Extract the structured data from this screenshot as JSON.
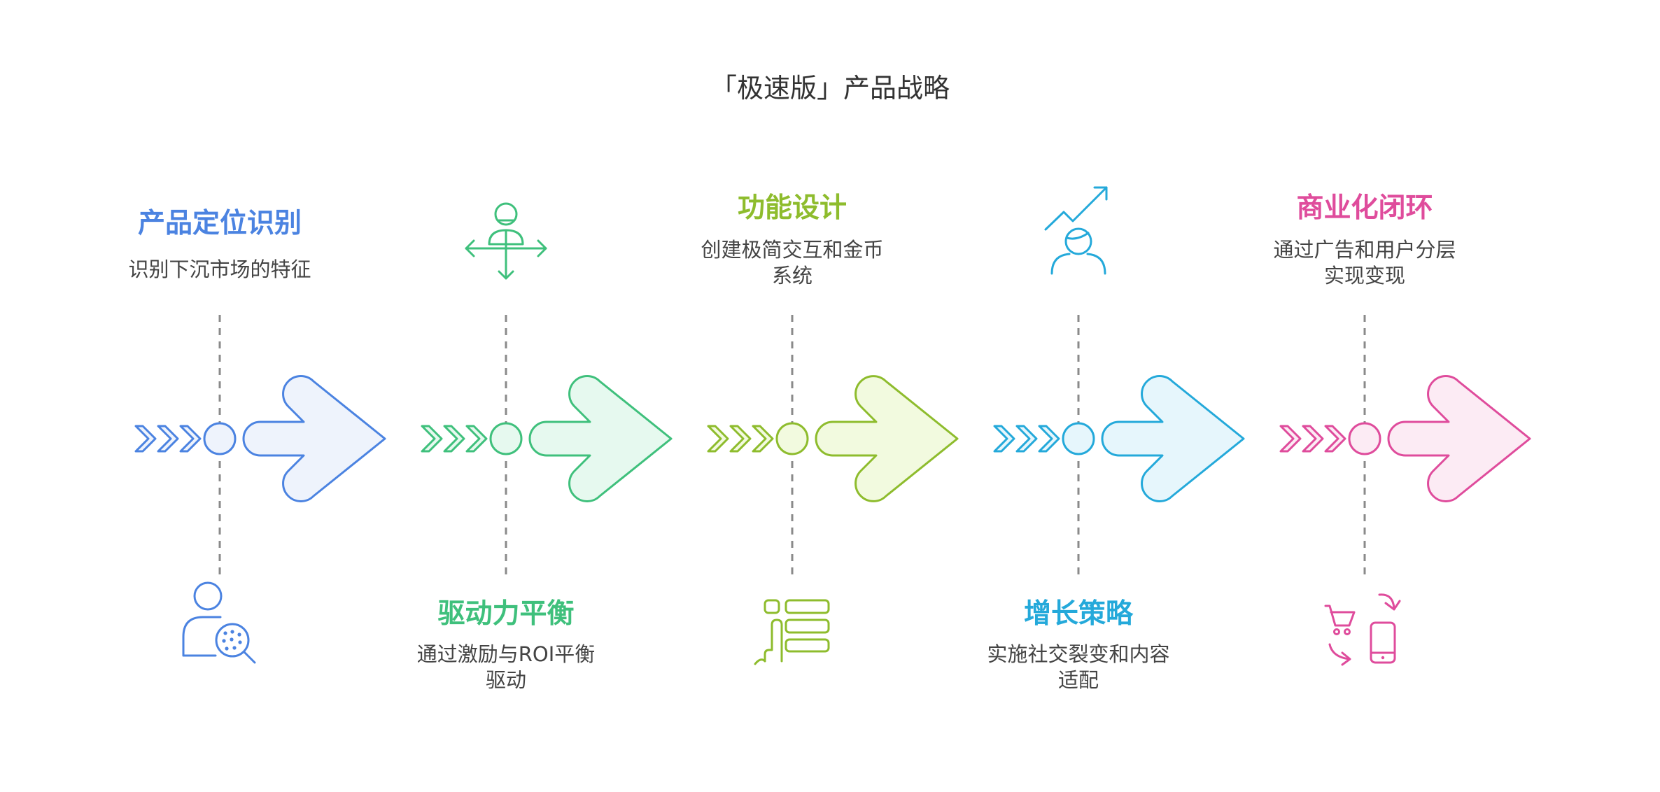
{
  "title": "「极速版」产品战略",
  "stages": [
    {
      "title": "产品定位识别",
      "desc": [
        "识别下沉市场的特征"
      ],
      "color": "#4b83e1",
      "fill": "#eef3fc",
      "icon": "market-analysis-icon",
      "text_position": "top"
    },
    {
      "title": "驱动力平衡",
      "desc": [
        "通过激励与ROI平衡",
        "驱动"
      ],
      "color": "#3fc07c",
      "fill": "#e6f9ef",
      "icon": "balance-person-icon",
      "text_position": "bottom"
    },
    {
      "title": "功能设计",
      "desc": [
        "创建极简交互和金币",
        "系统"
      ],
      "color": "#8ebc2d",
      "fill": "#f2fadf",
      "icon": "touch-interface-icon",
      "text_position": "top"
    },
    {
      "title": "增长策略",
      "desc": [
        "实施社交裂变和内容",
        "适配"
      ],
      "color": "#24a9da",
      "fill": "#e6f6fc",
      "icon": "growth-person-icon",
      "text_position": "bottom"
    },
    {
      "title": "商业化闭环",
      "desc": [
        "通过广告和用户分层",
        "实现变现"
      ],
      "color": "#df4c9c",
      "fill": "#fcebf4",
      "icon": "commerce-cycle-icon",
      "text_position": "top"
    }
  ]
}
